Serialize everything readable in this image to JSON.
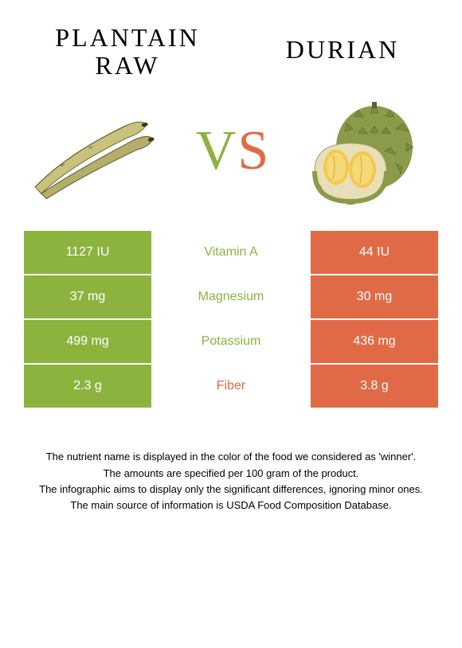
{
  "left": {
    "title_line1": "Plantain",
    "title_line2": "raw",
    "color": "#8db33f"
  },
  "right": {
    "title": "Durian",
    "color": "#e06a46"
  },
  "vs": {
    "v": "V",
    "s": "S"
  },
  "rows": [
    {
      "left": "1127 IU",
      "label": "Vitamin A",
      "right": "44 IU",
      "winner": "left"
    },
    {
      "left": "37 mg",
      "label": "Magnesium",
      "right": "30 mg",
      "winner": "left"
    },
    {
      "left": "499 mg",
      "label": "Potassium",
      "right": "436 mg",
      "winner": "left"
    },
    {
      "left": "2.3 g",
      "label": "Fiber",
      "right": "3.8 g",
      "winner": "right"
    }
  ],
  "footer": {
    "l1": "The nutrient name is displayed in the color of the food we considered as 'winner'.",
    "l2": "The amounts are specified per 100 gram of the product.",
    "l3": "The infographic aims to display only the significant differences, ignoring minor ones.",
    "l4": "The main source of information is USDA Food Composition Database."
  }
}
